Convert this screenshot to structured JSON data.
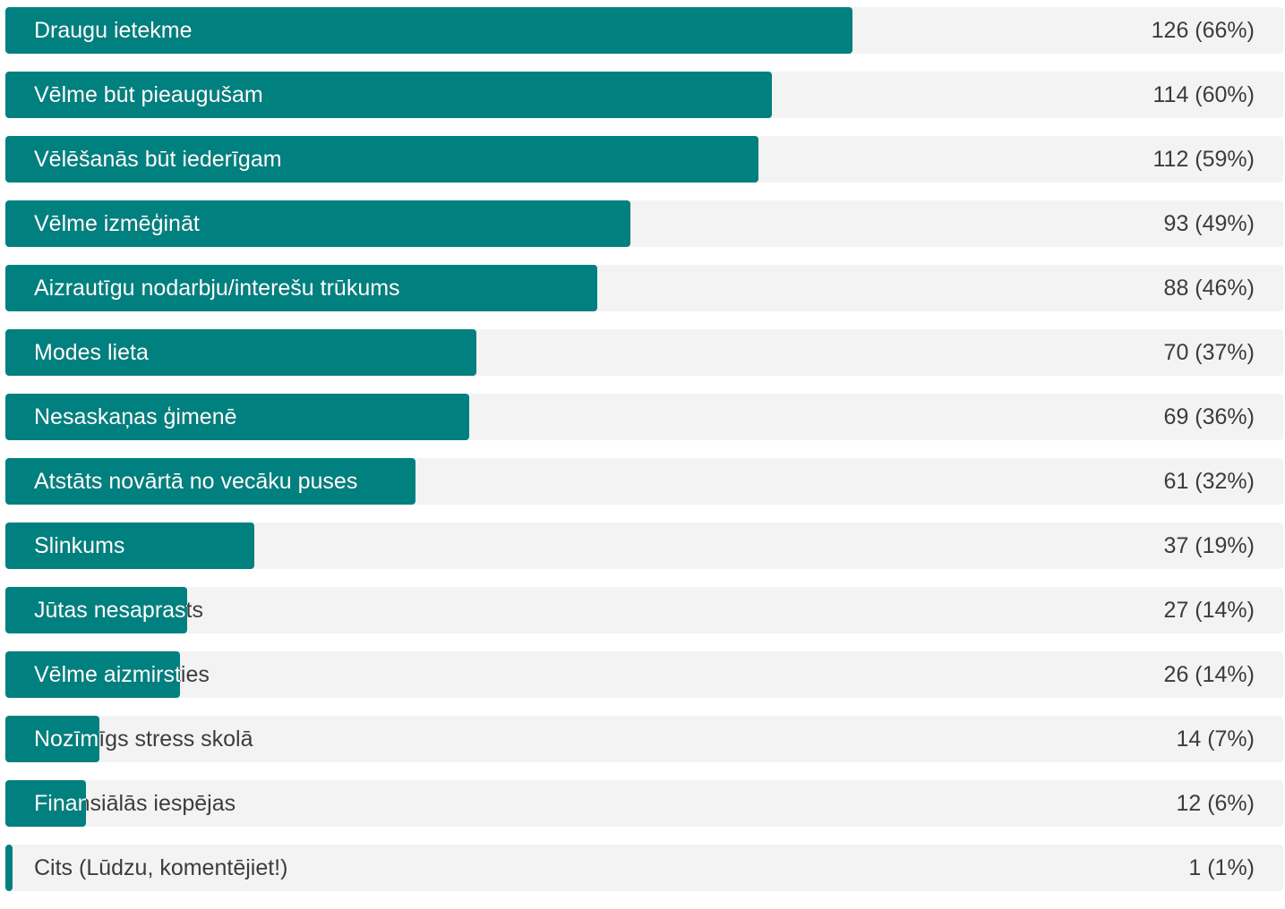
{
  "chart_data": {
    "type": "bar",
    "orientation": "horizontal",
    "max_value": 190,
    "bar_color": "#00807f",
    "track_color": "#f3f3f3",
    "categories": [
      "Draugu ietekme",
      "Vēlme būt pieaugušam",
      "Vēlēšanās būt iederīgam",
      "Vēlme izmēģināt",
      "Aizrautīgu nodarbju/interešu trūkums",
      "Modes lieta",
      "Nesaskaņas ģimenē",
      "Atstāts novārtā no vecāku puses",
      "Slinkums",
      "Jūtas nesaprasts",
      "Vēlme aizmirsties",
      "Nozīmīgs stress skolā",
      "Finansiālās iespējas",
      "Cits (Lūdzu, komentējiet!)"
    ],
    "values": [
      126,
      114,
      112,
      93,
      88,
      70,
      69,
      61,
      37,
      27,
      26,
      14,
      12,
      1
    ],
    "value_labels": [
      "126 (66%)",
      "114 (60%)",
      "112 (59%)",
      "93 (49%)",
      "88 (46%)",
      "70 (37%)",
      "69 (36%)",
      "61 (32%)",
      "37 (19%)",
      "27 (14%)",
      "26 (14%)",
      "14 (7%)",
      "12 (6%)",
      "1 (1%)"
    ]
  }
}
